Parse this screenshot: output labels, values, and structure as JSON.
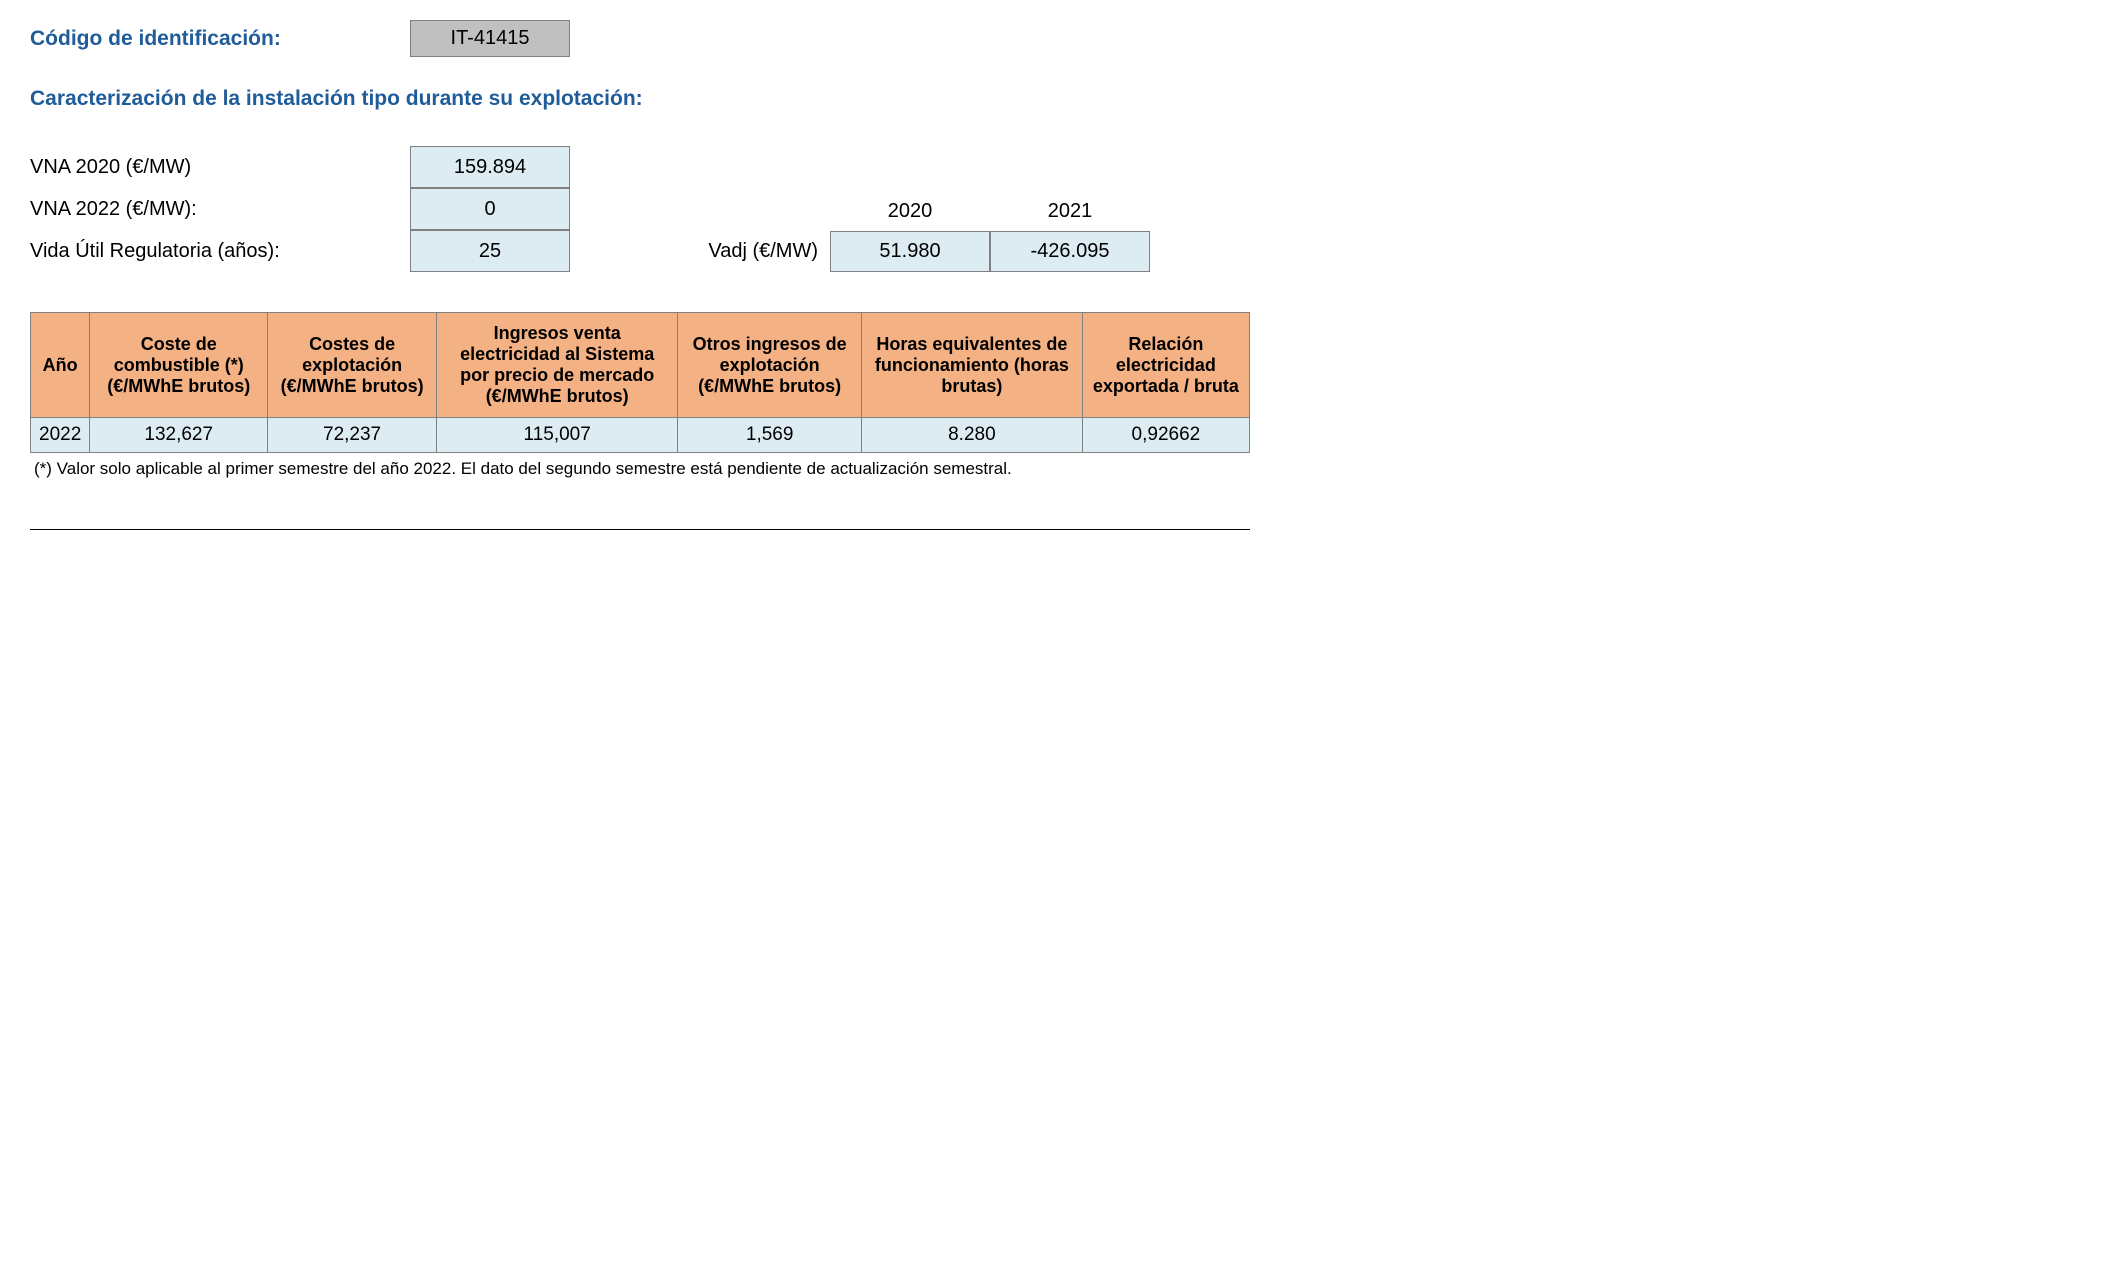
{
  "header": {
    "id_label": "Código de identificación:",
    "id_value": "IT-41415"
  },
  "section_title": "Caracterización de la instalación tipo durante su explotación:",
  "params": {
    "vna2020_label": "VNA 2020 (€/MW)",
    "vna2020_value": "159.894",
    "vna2022_label": "VNA 2022 (€/MW):",
    "vna2022_value": "0",
    "vida_label": "Vida Útil Regulatoria (años):",
    "vida_value": "25"
  },
  "vadj": {
    "label": "Vadj (€/MW)",
    "year1_label": "2020",
    "year2_label": "2021",
    "year1_value": "51.980",
    "year2_value": "-426.095"
  },
  "table": {
    "headers": {
      "col1": "Año",
      "col2": "Coste de combustible (*) (€/MWhE brutos)",
      "col3": "Costes de explotación (€/MWhE brutos)",
      "col4": "Ingresos venta electricidad al Sistema por precio de mercado (€/MWhE brutos)",
      "col5": "Otros ingresos de explotación (€/MWhE brutos)",
      "col6": "Horas equivalentes de funcionamiento (horas brutas)",
      "col7": "Relación electricidad exportada / bruta"
    },
    "row": {
      "col1": "2022",
      "col2": "132,627",
      "col3": "72,237",
      "col4": "115,007",
      "col5": "1,569",
      "col6": "8.280",
      "col7": "0,92662"
    }
  },
  "footnote": "(*) Valor solo aplicable al primer semestre del año 2022. El dato del segundo semestre está pendiente de actualización semestral.",
  "colors": {
    "heading": "#1f5c99",
    "lightblue_bg": "#dcecf2",
    "orange_bg": "#f4b183",
    "gray_bg": "#c0c0c0",
    "border": "#808080"
  }
}
